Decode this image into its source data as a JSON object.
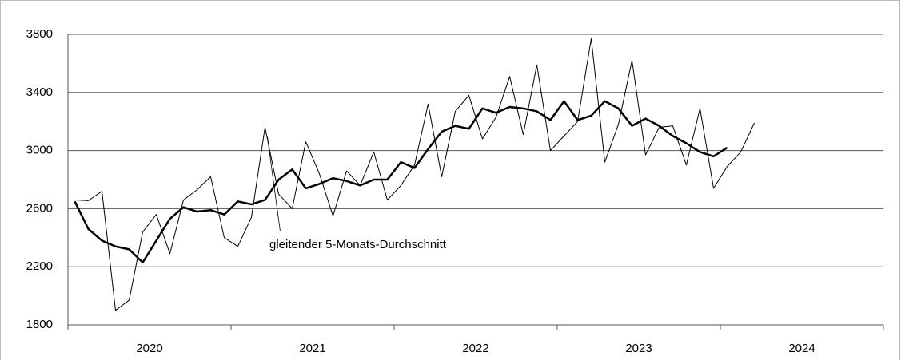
{
  "chart_data": {
    "type": "line",
    "annotation": "gleitender 5-Monats-Durchschnitt",
    "categories": [
      null,
      null,
      null,
      null,
      null,
      null,
      null,
      null,
      null,
      null,
      null,
      null,
      null,
      null,
      null,
      null,
      null,
      null,
      null,
      null,
      null,
      null,
      null,
      null,
      null,
      null,
      null,
      null,
      null,
      null,
      null,
      null,
      null,
      null,
      null,
      null,
      null,
      null,
      null,
      null,
      null,
      null,
      null,
      null,
      null,
      null,
      null,
      null,
      null,
      null,
      null
    ],
    "year_labels": [
      "2020",
      "2021",
      "2022",
      "2023",
      "2024"
    ],
    "series": [
      {
        "color": "#000000",
        "width": 1,
        "values": [
          2660,
          2655,
          2720,
          1900,
          1970,
          2440,
          2560,
          2290,
          2660,
          2730,
          2820,
          2400,
          2340,
          2540,
          3160,
          2700,
          2600,
          3060,
          2840,
          2550,
          2860,
          2760,
          2990,
          2660,
          2760,
          2900,
          3320,
          2820,
          3270,
          3380,
          3080,
          3230,
          3510,
          3110,
          3590,
          3000,
          3100,
          3200,
          3770,
          2920,
          3180,
          3620,
          2970,
          3160,
          3170,
          2900,
          3290,
          2740,
          2890,
          2990,
          3190
        ]
      },
      {
        "color": "#000000",
        "width": 2.5,
        "values": [
          2650,
          2460,
          2380,
          2340,
          2320,
          2230,
          2380,
          2530,
          2610,
          2580,
          2590,
          2560,
          2650,
          2630,
          2660,
          2800,
          2870,
          2740,
          2770,
          2810,
          2790,
          2760,
          2800,
          2800,
          2920,
          2880,
          3010,
          3130,
          3170,
          3150,
          3290,
          3260,
          3300,
          3290,
          3270,
          3210,
          3340,
          3210,
          3240,
          3340,
          3290,
          3170,
          3220,
          3170,
          3100,
          3050,
          2990,
          2960,
          3020,
          null,
          null
        ]
      }
    ],
    "ylim": [
      1800,
      3800
    ],
    "yticks": [
      1800,
      2200,
      2600,
      3000,
      3400,
      3800
    ],
    "grid": true
  }
}
